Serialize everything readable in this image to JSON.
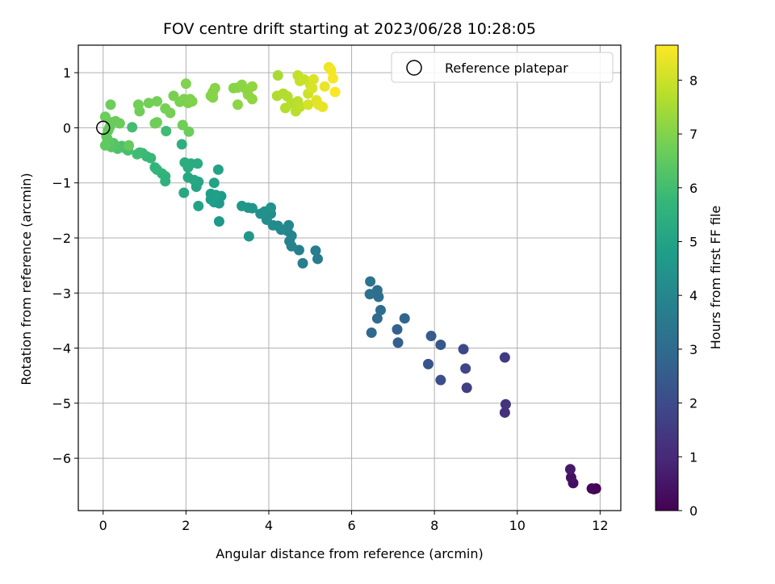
{
  "chart_data": {
    "type": "scatter",
    "title": "FOV centre drift starting at 2023/06/28 10:28:05",
    "xlabel": "Angular distance from reference (arcmin)",
    "ylabel": "Rotation from reference (arcmin)",
    "xlim": [
      -0.6,
      12.5
    ],
    "ylim": [
      -6.95,
      1.5
    ],
    "xticks": [
      0,
      2,
      4,
      6,
      8,
      10,
      12
    ],
    "yticks": [
      1,
      0,
      -1,
      -2,
      -3,
      -4,
      -5,
      -6
    ],
    "ytick_labels": [
      "1",
      "0",
      "−1",
      "−2",
      "−3",
      "−4",
      "−5",
      "−6"
    ],
    "grid": true,
    "legend": {
      "position": "top-right",
      "entries": [
        "Reference platepar"
      ]
    },
    "reference_point": {
      "x": 0,
      "y": 0,
      "marker": "open-circle"
    },
    "colorbar": {
      "label": "Hours from first FF file",
      "colormap": "viridis",
      "range": [
        0,
        8.65
      ],
      "ticks": [
        0,
        1,
        2,
        3,
        4,
        5,
        6,
        7,
        8
      ]
    },
    "colormap_stops": [
      "#440154",
      "#482878",
      "#3e4989",
      "#31688e",
      "#26828e",
      "#1f9e89",
      "#35b779",
      "#6ece58",
      "#b5de2b",
      "#fde725"
    ],
    "series": [
      {
        "points": [
          [
            11.9,
            -6.55,
            0.05
          ],
          [
            11.85,
            -6.56,
            0.1
          ],
          [
            11.8,
            -6.55,
            0.15
          ],
          [
            11.35,
            -6.45,
            0.3
          ],
          [
            11.3,
            -6.35,
            0.4
          ],
          [
            11.28,
            -6.2,
            0.6
          ],
          [
            9.7,
            -5.17,
            1.2
          ],
          [
            9.72,
            -5.02,
            1.3
          ],
          [
            9.7,
            -4.17,
            1.5
          ],
          [
            8.78,
            -4.72,
            1.6
          ],
          [
            8.75,
            -4.37,
            1.8
          ],
          [
            8.7,
            -4.02,
            1.9
          ],
          [
            8.15,
            -4.58,
            2.1
          ],
          [
            7.85,
            -4.29,
            2.3
          ],
          [
            8.15,
            -3.94,
            2.4
          ],
          [
            7.92,
            -3.78,
            2.5
          ],
          [
            7.12,
            -3.9,
            2.6
          ],
          [
            7.1,
            -3.66,
            2.7
          ],
          [
            7.28,
            -3.46,
            2.8
          ],
          [
            6.48,
            -3.72,
            2.9
          ],
          [
            6.62,
            -3.46,
            3.0
          ],
          [
            6.7,
            -3.31,
            3.05
          ],
          [
            6.65,
            -3.07,
            3.1
          ],
          [
            6.62,
            -2.95,
            3.15
          ],
          [
            6.44,
            -3.02,
            3.2
          ],
          [
            6.45,
            -2.79,
            3.3
          ],
          [
            5.18,
            -2.38,
            3.6
          ],
          [
            5.13,
            -2.23,
            3.65
          ],
          [
            4.82,
            -2.46,
            3.7
          ],
          [
            4.73,
            -2.22,
            3.75
          ],
          [
            4.55,
            -2.15,
            3.8
          ],
          [
            4.5,
            -2.06,
            3.85
          ],
          [
            4.55,
            -1.96,
            3.9
          ],
          [
            4.45,
            -1.87,
            3.95
          ],
          [
            4.48,
            -1.77,
            4.0
          ],
          [
            4.3,
            -1.85,
            4.05
          ],
          [
            4.22,
            -1.78,
            4.1
          ],
          [
            4.1,
            -1.77,
            4.15
          ],
          [
            4.05,
            -1.56,
            4.2
          ],
          [
            3.95,
            -1.67,
            4.25
          ],
          [
            3.9,
            -1.52,
            4.3
          ],
          [
            3.8,
            -1.56,
            4.35
          ],
          [
            4.05,
            -1.45,
            4.4
          ],
          [
            3.6,
            -1.46,
            4.45
          ],
          [
            3.5,
            -1.45,
            4.5
          ],
          [
            3.35,
            -1.42,
            4.55
          ],
          [
            3.52,
            -1.97,
            4.55
          ],
          [
            2.8,
            -1.7,
            4.6
          ],
          [
            2.8,
            -1.37,
            4.65
          ],
          [
            2.85,
            -1.24,
            4.7
          ],
          [
            2.68,
            -1.35,
            4.75
          ],
          [
            2.6,
            -1.3,
            4.8
          ],
          [
            2.6,
            -1.2,
            4.85
          ],
          [
            2.72,
            -1.22,
            4.9
          ],
          [
            2.68,
            -1.0,
            4.95
          ],
          [
            2.78,
            -0.76,
            5.0
          ],
          [
            2.3,
            -1.42,
            5.0
          ],
          [
            2.25,
            -1.07,
            5.05
          ],
          [
            2.3,
            -0.98,
            5.1
          ],
          [
            2.2,
            -0.95,
            5.15
          ],
          [
            2.05,
            -0.9,
            5.2
          ],
          [
            1.95,
            -1.18,
            5.2
          ],
          [
            2.05,
            -0.72,
            5.25
          ],
          [
            2.28,
            -0.65,
            5.3
          ],
          [
            2.12,
            -0.65,
            5.35
          ],
          [
            1.97,
            -0.63,
            5.4
          ],
          [
            1.9,
            -0.3,
            5.45
          ],
          [
            1.5,
            -0.97,
            5.5
          ],
          [
            1.5,
            -0.88,
            5.55
          ],
          [
            1.42,
            -0.83,
            5.6
          ],
          [
            1.3,
            -0.76,
            5.65
          ],
          [
            1.25,
            -0.72,
            5.7
          ],
          [
            1.15,
            -0.55,
            5.75
          ],
          [
            1.05,
            -0.52,
            5.8
          ],
          [
            0.95,
            -0.46,
            5.85
          ],
          [
            0.88,
            -0.45,
            5.9
          ],
          [
            0.82,
            -0.48,
            5.95
          ],
          [
            1.52,
            -0.06,
            5.95
          ],
          [
            0.7,
            0.01,
            6.0
          ],
          [
            0.6,
            -0.41,
            6.05
          ],
          [
            0.55,
            -0.38,
            6.1
          ],
          [
            0.45,
            -0.33,
            6.15
          ],
          [
            0.35,
            -0.38,
            6.2
          ],
          [
            0.3,
            -0.33,
            6.25
          ],
          [
            0.25,
            -0.28,
            6.3
          ],
          [
            0.2,
            -0.35,
            6.35
          ],
          [
            0.15,
            -0.26,
            6.4
          ],
          [
            0.1,
            -0.2,
            6.45
          ],
          [
            0.05,
            -0.32,
            6.5
          ],
          [
            0.08,
            -0.15,
            6.5
          ],
          [
            0.12,
            -0.05,
            6.55
          ],
          [
            0.15,
            0.0,
            6.6
          ],
          [
            0.18,
            0.06,
            6.6
          ],
          [
            0.22,
            0.1,
            6.62
          ],
          [
            0.3,
            0.12,
            6.65
          ],
          [
            0.4,
            0.08,
            6.66
          ],
          [
            0.05,
            0.2,
            6.68
          ],
          [
            0.18,
            0.42,
            6.7
          ],
          [
            0.62,
            -0.32,
            6.55
          ],
          [
            2.07,
            -0.07,
            6.7
          ],
          [
            1.92,
            0.05,
            6.72
          ],
          [
            1.25,
            0.08,
            6.74
          ],
          [
            1.3,
            0.1,
            6.74
          ],
          [
            0.88,
            0.3,
            6.75
          ],
          [
            0.85,
            0.42,
            6.76
          ],
          [
            1.1,
            0.45,
            6.78
          ],
          [
            1.3,
            0.48,
            6.8
          ],
          [
            1.5,
            0.35,
            6.82
          ],
          [
            1.62,
            0.27,
            6.84
          ],
          [
            1.7,
            0.58,
            6.86
          ],
          [
            1.85,
            0.47,
            6.88
          ],
          [
            1.95,
            0.52,
            6.9
          ],
          [
            2.05,
            0.45,
            6.92
          ],
          [
            2.1,
            0.52,
            6.94
          ],
          [
            2.15,
            0.48,
            6.96
          ],
          [
            2.0,
            0.8,
            6.98
          ],
          [
            2.6,
            0.58,
            7.0
          ],
          [
            2.65,
            0.55,
            7.02
          ],
          [
            2.7,
            0.72,
            7.04
          ],
          [
            2.65,
            0.65,
            7.06
          ],
          [
            3.15,
            0.72,
            7.08
          ],
          [
            3.25,
            0.73,
            7.1
          ],
          [
            3.35,
            0.78,
            7.12
          ],
          [
            3.45,
            0.7,
            7.14
          ],
          [
            3.25,
            0.42,
            7.14
          ],
          [
            3.5,
            0.6,
            7.16
          ],
          [
            3.6,
            0.52,
            7.18
          ],
          [
            3.6,
            0.75,
            7.2
          ],
          [
            4.22,
            0.95,
            7.5
          ],
          [
            4.2,
            0.58,
            7.6
          ],
          [
            4.35,
            0.62,
            7.62
          ],
          [
            4.45,
            0.57,
            7.64
          ],
          [
            4.4,
            0.36,
            7.66
          ],
          [
            4.55,
            0.45,
            7.7
          ],
          [
            4.62,
            0.42,
            7.72
          ],
          [
            4.65,
            0.3,
            7.74
          ],
          [
            4.7,
            0.48,
            7.76
          ],
          [
            4.75,
            0.38,
            7.78
          ],
          [
            4.7,
            0.95,
            7.85
          ],
          [
            4.75,
            0.85,
            7.9
          ],
          [
            4.85,
            0.88,
            7.95
          ],
          [
            4.95,
            0.62,
            8.0
          ],
          [
            5.0,
            0.78,
            8.05
          ],
          [
            4.95,
            0.42,
            8.1
          ],
          [
            5.05,
            0.72,
            8.15
          ],
          [
            5.08,
            0.88,
            8.2
          ],
          [
            5.15,
            0.5,
            8.25
          ],
          [
            5.2,
            0.42,
            8.3
          ],
          [
            5.3,
            0.38,
            8.35
          ],
          [
            5.35,
            0.75,
            8.4
          ],
          [
            5.45,
            1.1,
            8.45
          ],
          [
            5.5,
            1.05,
            8.5
          ],
          [
            5.55,
            0.9,
            8.55
          ],
          [
            5.6,
            0.65,
            8.6
          ]
        ]
      }
    ]
  }
}
